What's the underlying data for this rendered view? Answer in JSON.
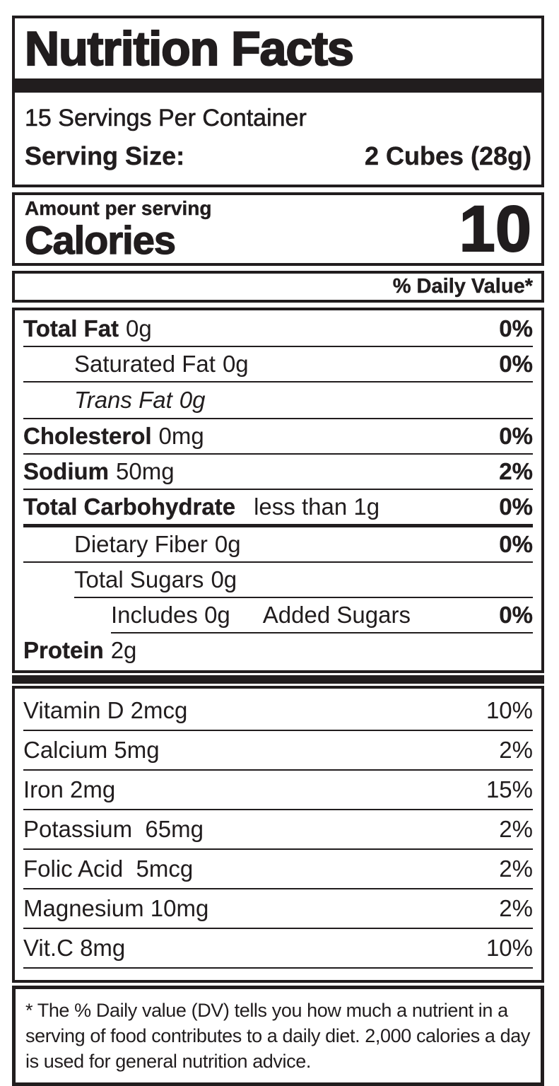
{
  "colors": {
    "ink": "#211d1e",
    "background": "#ffffff"
  },
  "label": {
    "title": "Nutrition Facts",
    "servings_per_container": "15 Servings Per Container",
    "serving_size_label": "Serving Size:",
    "serving_size_value": "2 Cubes (28g)",
    "amount_per_serving": "Amount per serving",
    "calories_label": "Calories",
    "calories_value": "10",
    "daily_value_header": "% Daily Value*",
    "nutrients": [
      {
        "name": "Total Fat",
        "amount": "0g",
        "dv": "0%"
      },
      {
        "name": "Saturated Fat",
        "amount": "0g",
        "dv": "0%"
      },
      {
        "name": "Trans Fat",
        "amount": "0g",
        "dv": ""
      },
      {
        "name": "Cholesterol",
        "amount": "0mg",
        "dv": "0%"
      },
      {
        "name": "Sodium",
        "amount": "50mg",
        "dv": "2%"
      },
      {
        "name": "Total Carbohydrate",
        "amount": "less than 1g",
        "dv": "0%"
      },
      {
        "name": "Dietary Fiber",
        "amount": "0g",
        "dv": "0%"
      },
      {
        "name": "Total Sugars",
        "amount": "0g",
        "dv": ""
      },
      {
        "name": "Includes 0g",
        "amount": "Added Sugars",
        "dv": "0%"
      },
      {
        "name": "Protein",
        "amount": "2g",
        "dv": ""
      }
    ],
    "vitamins": [
      {
        "name": "Vitamin D 2mcg",
        "dv": "10%"
      },
      {
        "name": "Calcium 5mg",
        "dv": "2%"
      },
      {
        "name": "Iron 2mg",
        "dv": "15%"
      },
      {
        "name": "Potassium  65mg",
        "dv": "2%"
      },
      {
        "name": "Folic Acid  5mcg",
        "dv": "2%"
      },
      {
        "name": "Magnesium 10mg",
        "dv": "2%"
      },
      {
        "name": "Vit.C 8mg",
        "dv": "10%"
      }
    ],
    "footnote": "* The % Daily value (DV) tells you how much a nutrient in a serving of food contributes to a daily diet. 2,000 calories a day is used for general nutrition advice."
  }
}
